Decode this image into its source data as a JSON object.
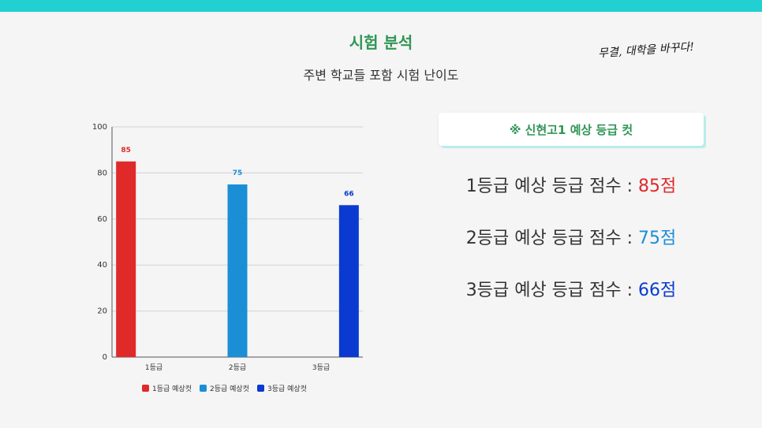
{
  "header": {
    "title": "시험 분석",
    "subtitle": "주변 학교들 포함 시험 난이도",
    "slogan": "무결, 대학을 바꾸다!"
  },
  "colors": {
    "accent_bar": "#22d0d2",
    "title_green": "#2f9654",
    "grade1": "#e02a2a",
    "grade2": "#1a8fd6",
    "grade3": "#0a3ad0"
  },
  "info": {
    "box_label": "※ 신현고1 예상 등급 컷",
    "lines": [
      {
        "label": "1등급 예상 등급 점수 : ",
        "value": "85점",
        "color": "#e02a2a"
      },
      {
        "label": "2등급 예상 등급 점수 : ",
        "value": "75점",
        "color": "#1a8fd6"
      },
      {
        "label": "3등급 예상 등급 점수 : ",
        "value": "66점",
        "color": "#0a3ad0"
      }
    ]
  },
  "chart_data": {
    "type": "bar",
    "categories": [
      "1등급",
      "2등급",
      "3등급"
    ],
    "series": [
      {
        "name": "1등급 예상컷",
        "values": [
          85,
          null,
          null
        ],
        "color": "#e02a2a"
      },
      {
        "name": "2등급 예상컷",
        "values": [
          null,
          75,
          null
        ],
        "color": "#1a8fd6"
      },
      {
        "name": "3등급 예상컷",
        "values": [
          null,
          null,
          66
        ],
        "color": "#0a3ad0"
      }
    ],
    "ylim": [
      0,
      100
    ],
    "yticks": [
      0,
      20,
      40,
      60,
      80,
      100
    ],
    "grid": true,
    "legend": "bottom",
    "data_labels": true
  }
}
